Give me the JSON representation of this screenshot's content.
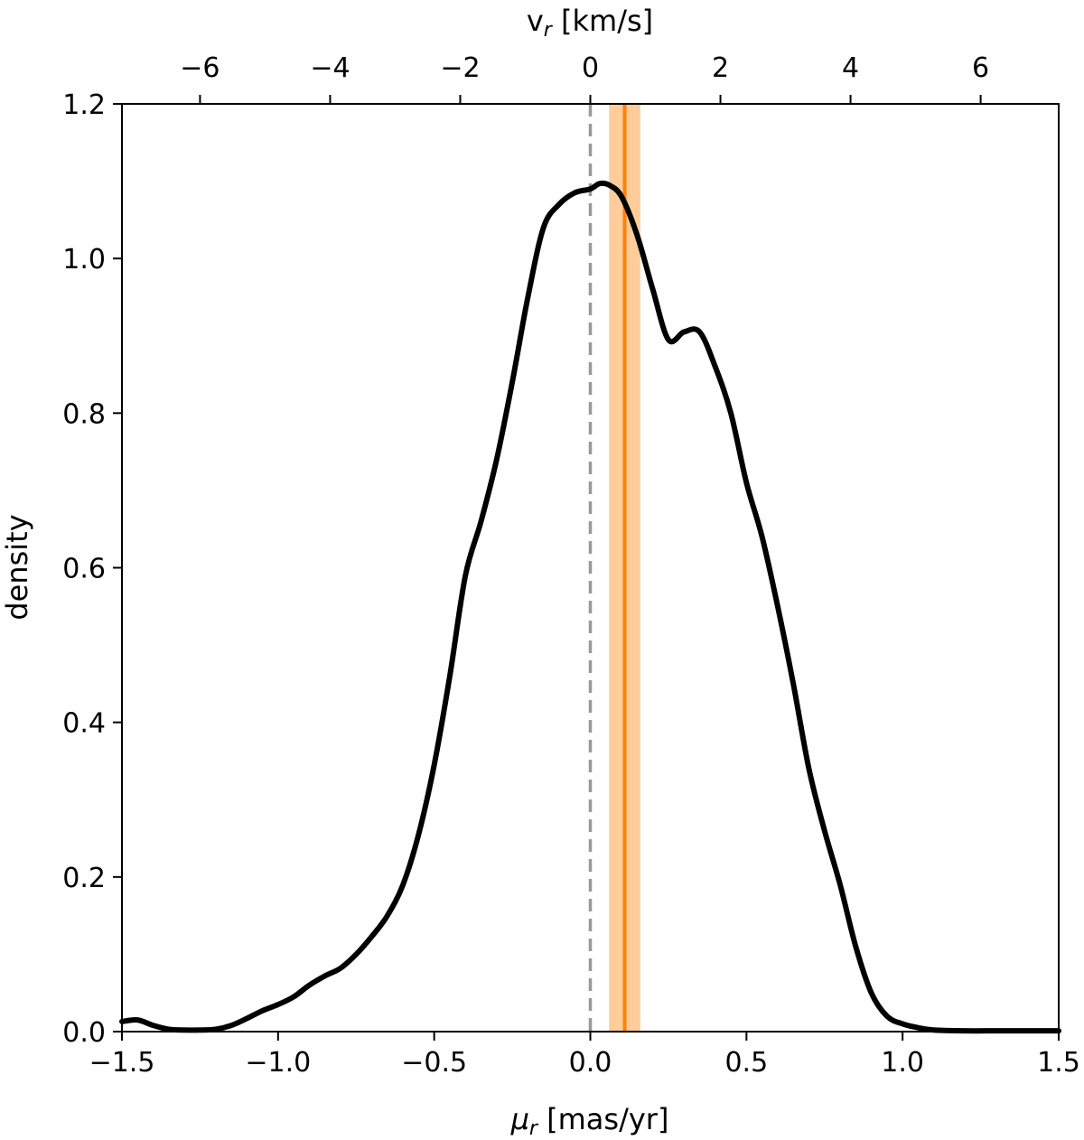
{
  "chart_data": {
    "type": "line",
    "xlabel_symbol": "μ",
    "xlabel_sub": "r",
    "xlabel_unit": " [mas/yr]",
    "ylabel": "density",
    "top_xlabel_symbol": "v",
    "top_xlabel_sub": "r",
    "top_xlabel_unit": " [km/s]",
    "xlim": [
      -1.5,
      1.5
    ],
    "ylim": [
      0.0,
      1.2
    ],
    "top_xlim": [
      -7.2,
      7.2
    ],
    "x_ticks": [
      "−1.5",
      "−1.0",
      "−0.5",
      "0.0",
      "0.5",
      "1.0",
      "1.5"
    ],
    "x_tick_values": [
      -1.5,
      -1.0,
      -0.5,
      0.0,
      0.5,
      1.0,
      1.5
    ],
    "y_ticks": [
      "0.0",
      "0.2",
      "0.4",
      "0.6",
      "0.8",
      "1.0",
      "1.2"
    ],
    "y_tick_values": [
      0.0,
      0.2,
      0.4,
      0.6,
      0.8,
      1.0,
      1.2
    ],
    "top_x_ticks": [
      "−6",
      "−4",
      "−2",
      "0",
      "2",
      "4",
      "6"
    ],
    "top_x_tick_values": [
      -6,
      -4,
      -2,
      0,
      2,
      4,
      6
    ],
    "grid": false,
    "reference_line": {
      "x": 0.0,
      "style": "dashed",
      "color": "#999999"
    },
    "marker_line": {
      "x": 0.11,
      "color": "#ff7f0e"
    },
    "marker_band": {
      "x0": 0.06,
      "x1": 0.16,
      "color": "#ffbb78"
    },
    "curve_color": "#000000",
    "series": [
      {
        "x": [
          -1.5,
          -1.45,
          -1.4,
          -1.35,
          -1.3,
          -1.25,
          -1.2,
          -1.15,
          -1.1,
          -1.05,
          -1.0,
          -0.95,
          -0.9,
          -0.85,
          -0.8,
          -0.75,
          -0.7,
          -0.65,
          -0.6,
          -0.55,
          -0.5,
          -0.45,
          -0.4,
          -0.35,
          -0.3,
          -0.25,
          -0.2,
          -0.15,
          -0.1,
          -0.05,
          0.0,
          0.03,
          0.06,
          0.1,
          0.15,
          0.2,
          0.25,
          0.3,
          0.35,
          0.4,
          0.45,
          0.5,
          0.55,
          0.6,
          0.65,
          0.7,
          0.75,
          0.8,
          0.85,
          0.9,
          0.95,
          1.0,
          1.05,
          1.1,
          1.2,
          1.3,
          1.4,
          1.5
        ],
        "y": [
          0.013,
          0.015,
          0.008,
          0.003,
          0.002,
          0.002,
          0.003,
          0.008,
          0.017,
          0.027,
          0.035,
          0.045,
          0.06,
          0.072,
          0.082,
          0.1,
          0.123,
          0.15,
          0.19,
          0.255,
          0.345,
          0.46,
          0.59,
          0.66,
          0.74,
          0.84,
          0.95,
          1.04,
          1.07,
          1.085,
          1.09,
          1.097,
          1.095,
          1.08,
          1.03,
          0.96,
          0.895,
          0.905,
          0.905,
          0.86,
          0.8,
          0.71,
          0.64,
          0.55,
          0.45,
          0.34,
          0.26,
          0.19,
          0.11,
          0.05,
          0.02,
          0.01,
          0.005,
          0.002,
          0.001,
          0.001,
          0.001,
          0.001
        ]
      }
    ]
  }
}
